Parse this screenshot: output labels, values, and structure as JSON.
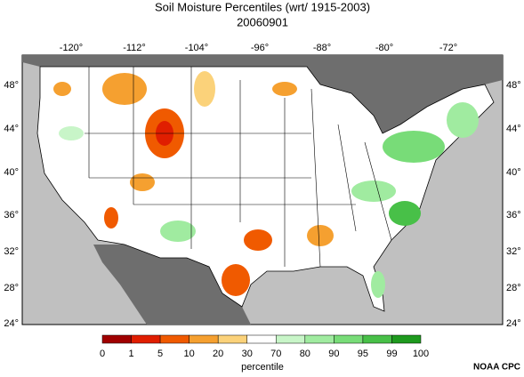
{
  "title": "Soil Moisture Percentiles (wrt/ 1915-2003)",
  "date": "20060901",
  "map": {
    "longitude_labels": [
      "-120°",
      "-112°",
      "-104°",
      "-96°",
      "-88°",
      "-80°",
      "-72°"
    ],
    "latitude_labels": [
      "48°",
      "44°",
      "40°",
      "36°",
      "32°",
      "28°",
      "24°"
    ]
  },
  "colorbar": {
    "ticks": [
      0,
      1,
      5,
      10,
      20,
      30,
      70,
      80,
      90,
      95,
      99,
      100
    ],
    "colors": [
      "#a00000",
      "#e01e00",
      "#f05a00",
      "#f5a030",
      "#fbd27a",
      "#ffffff",
      "#c8f5c8",
      "#a0eba0",
      "#78dc78",
      "#48c048",
      "#1e9a1e"
    ],
    "label": "percentile"
  },
  "credit": "NOAA CPC"
}
